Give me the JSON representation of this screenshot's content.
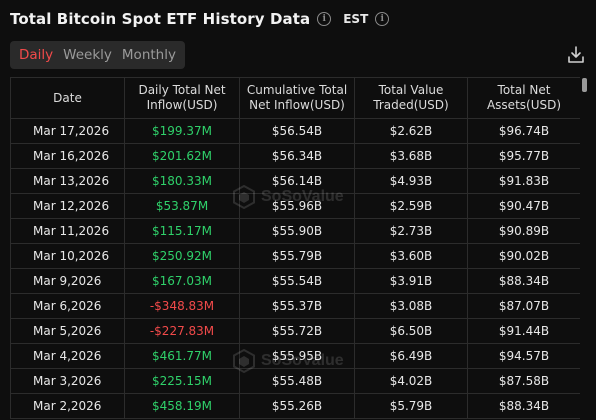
{
  "header": {
    "title": "Total Bitcoin Spot ETF History Data",
    "timezone": "EST"
  },
  "tabs": [
    {
      "label": "Daily",
      "active": true
    },
    {
      "label": "Weekly",
      "active": false
    },
    {
      "label": "Monthly",
      "active": false
    }
  ],
  "icons": {
    "info": "info-icon",
    "download": "download-icon"
  },
  "colors": {
    "positive": "#2fd16a",
    "negative": "#f24a4a",
    "active_tab": "#f24a4a"
  },
  "table": {
    "columns": [
      "Date",
      "Daily Total Net Inflow(USD)",
      "Cumulative Total Net Inflow(USD)",
      "Total Value Traded(USD)",
      "Total Net Assets(USD)"
    ],
    "rows": [
      {
        "date": "Mar 17,2026",
        "daily": "$199.37M",
        "cumulative": "$56.54B",
        "traded": "$2.62B",
        "assets": "$96.74B"
      },
      {
        "date": "Mar 16,2026",
        "daily": "$201.62M",
        "cumulative": "$56.34B",
        "traded": "$3.68B",
        "assets": "$95.77B"
      },
      {
        "date": "Mar 13,2026",
        "daily": "$180.33M",
        "cumulative": "$56.14B",
        "traded": "$4.93B",
        "assets": "$91.83B"
      },
      {
        "date": "Mar 12,2026",
        "daily": "$53.87M",
        "cumulative": "$55.96B",
        "traded": "$2.59B",
        "assets": "$90.47B"
      },
      {
        "date": "Mar 11,2026",
        "daily": "$115.17M",
        "cumulative": "$55.90B",
        "traded": "$2.73B",
        "assets": "$90.89B"
      },
      {
        "date": "Mar 10,2026",
        "daily": "$250.92M",
        "cumulative": "$55.79B",
        "traded": "$3.60B",
        "assets": "$90.02B"
      },
      {
        "date": "Mar 9,2026",
        "daily": "$167.03M",
        "cumulative": "$55.54B",
        "traded": "$3.91B",
        "assets": "$88.34B"
      },
      {
        "date": "Mar 6,2026",
        "daily": "-$348.83M",
        "cumulative": "$55.37B",
        "traded": "$3.08B",
        "assets": "$87.07B"
      },
      {
        "date": "Mar 5,2026",
        "daily": "-$227.83M",
        "cumulative": "$55.72B",
        "traded": "$6.50B",
        "assets": "$91.44B"
      },
      {
        "date": "Mar 4,2026",
        "daily": "$461.77M",
        "cumulative": "$55.95B",
        "traded": "$6.49B",
        "assets": "$94.57B"
      },
      {
        "date": "Mar 3,2026",
        "daily": "$225.15M",
        "cumulative": "$55.48B",
        "traded": "$4.02B",
        "assets": "$87.58B"
      },
      {
        "date": "Mar 2,2026",
        "daily": "$458.19M",
        "cumulative": "$55.26B",
        "traded": "$5.79B",
        "assets": "$88.34B"
      }
    ]
  },
  "watermark": "SoSoValue"
}
